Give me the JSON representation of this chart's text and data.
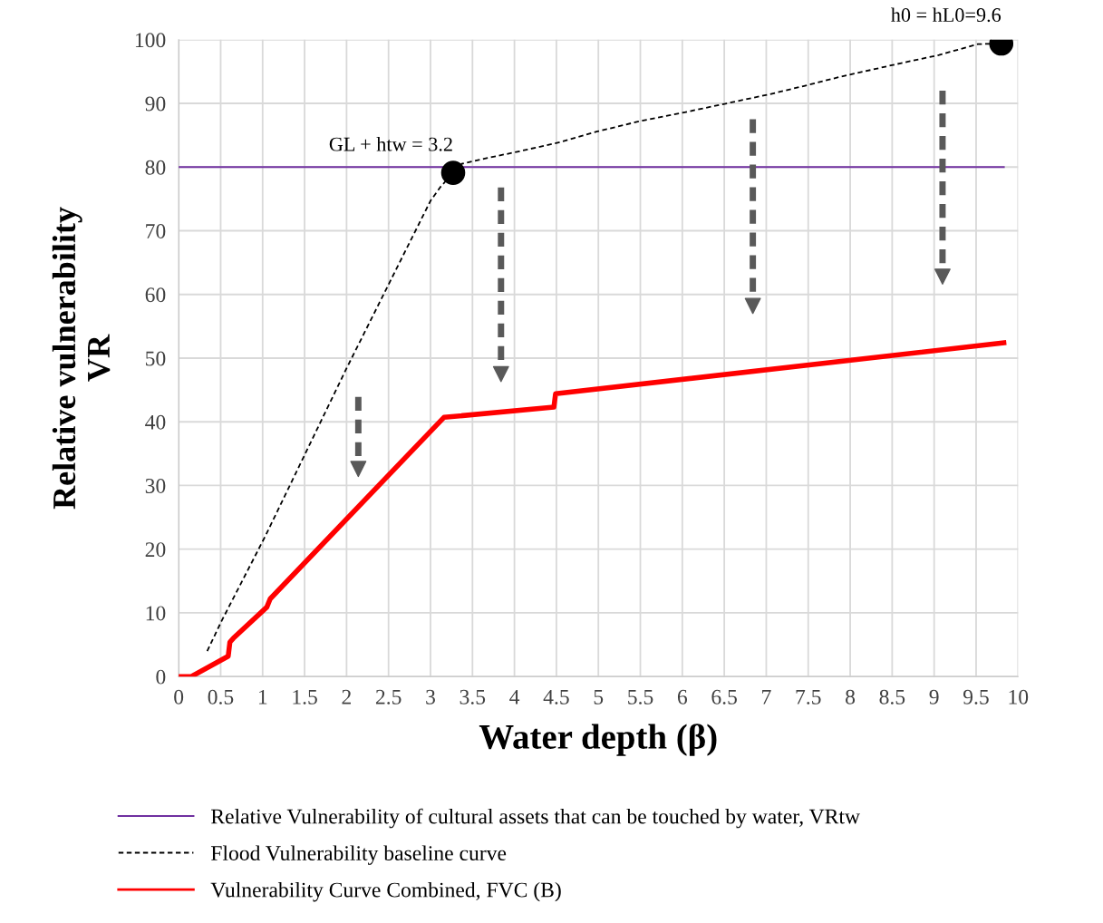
{
  "chart_data": {
    "type": "line",
    "xlabel": "Water depth (β)",
    "ylabel": "Relative vulnerability\nVR",
    "xlim": [
      0,
      10
    ],
    "xticks": [
      0,
      0.5,
      1,
      1.5,
      2,
      2.5,
      3,
      3.5,
      4,
      4.5,
      5,
      5.5,
      6,
      6.5,
      7,
      7.5,
      8,
      8.5,
      9,
      9.5,
      10
    ],
    "ylim": [
      0,
      100
    ],
    "yticks": [
      0,
      10,
      20,
      30,
      40,
      50,
      60,
      70,
      80,
      90,
      100
    ],
    "grid": true,
    "legend": "bottom",
    "series": [
      {
        "name": "Relative Vulnerability of cultural assets that can be touched by water, VRtw",
        "color": "#7030a0",
        "line_style": "solid",
        "x": [
          0,
          9.83
        ],
        "values": [
          80,
          80
        ]
      },
      {
        "name": "Flood Vulnerability baseline curve",
        "color": "#000000",
        "line_style": "dashed",
        "x": [
          0.34,
          0.51,
          1.03,
          2.0,
          3.0,
          3.12,
          3.27,
          3.37,
          3.7,
          4.0,
          4.54,
          4.99,
          5.49,
          6.03,
          6.53,
          7.03,
          7.44,
          7.86,
          8.6,
          9.06,
          9.52,
          9.8
        ],
        "values": [
          4,
          8.7,
          22,
          48.4,
          74.7,
          76.9,
          79.1,
          80.5,
          81.5,
          82.3,
          83.9,
          85.6,
          87.2,
          88.6,
          90,
          91.4,
          92.7,
          94.1,
          96.3,
          97.6,
          99.3,
          99.4
        ]
      },
      {
        "name": "Vulnerability Curve Combined, FVC (B)",
        "color": "#ff0000",
        "line_style": "solid",
        "x": [
          0,
          0.15,
          0.59,
          0.61,
          0.65,
          1.05,
          1.09,
          3.16,
          4.47,
          4.49,
          9.83
        ],
        "values": [
          0,
          0,
          3.2,
          5.4,
          6.0,
          10.9,
          12.2,
          40.7,
          42.3,
          44.4,
          52.4
        ]
      },
      {
        "type": "scatter",
        "color": "#000000",
        "marker": "circle",
        "x": [
          3.27,
          9.8
        ],
        "values": [
          79.1,
          99.4
        ]
      }
    ],
    "annotations": [
      {
        "text": "GL + htw = 3.2",
        "x": 3.27,
        "y": 79.1
      },
      {
        "text": "h0 = hL0=9.6",
        "x": 9.8,
        "y": 99.4
      }
    ]
  }
}
